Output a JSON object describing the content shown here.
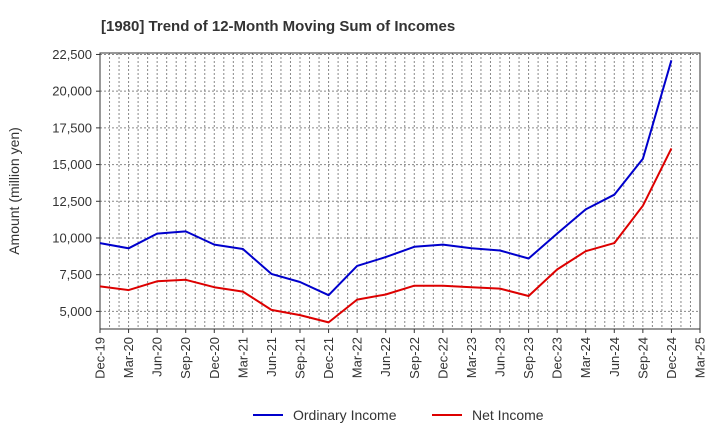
{
  "chart_data": {
    "type": "line",
    "title": "[1980]  Trend of 12-Month Moving Sum of Incomes",
    "xlabel": "",
    "ylabel": "Amount (million yen)",
    "ylim": [
      3800,
      22600
    ],
    "yticks": [
      5000,
      7500,
      10000,
      12500,
      15000,
      17500,
      20000,
      22500
    ],
    "ytick_labels": [
      "5,000",
      "7,500",
      "10,000",
      "12,500",
      "15,000",
      "17,500",
      "20,000",
      "22,500"
    ],
    "categories": [
      "Dec-19",
      "Mar-20",
      "Jun-20",
      "Sep-20",
      "Dec-20",
      "Mar-21",
      "Jun-21",
      "Sep-21",
      "Dec-21",
      "Mar-22",
      "Jun-22",
      "Sep-22",
      "Dec-22",
      "Mar-23",
      "Jun-23",
      "Sep-23",
      "Dec-23",
      "Mar-24",
      "Jun-24",
      "Sep-24",
      "Dec-24",
      "Mar-25"
    ],
    "grid": true,
    "legend_position": "bottom",
    "series": [
      {
        "name": "Ordinary Income",
        "color": "#0000cc",
        "values": [
          9650,
          9300,
          10300,
          10450,
          9550,
          9250,
          7550,
          7000,
          6100,
          8100,
          8700,
          9400,
          9550,
          9300,
          9150,
          8600,
          10300,
          11950,
          12950,
          15400,
          22100,
          null
        ]
      },
      {
        "name": "Net Income",
        "color": "#dd0000",
        "values": [
          6700,
          6450,
          7050,
          7150,
          6650,
          6350,
          5100,
          4750,
          4250,
          5800,
          6150,
          6750,
          6750,
          6650,
          6550,
          6050,
          7850,
          9100,
          9650,
          12200,
          16100,
          null
        ]
      }
    ]
  }
}
